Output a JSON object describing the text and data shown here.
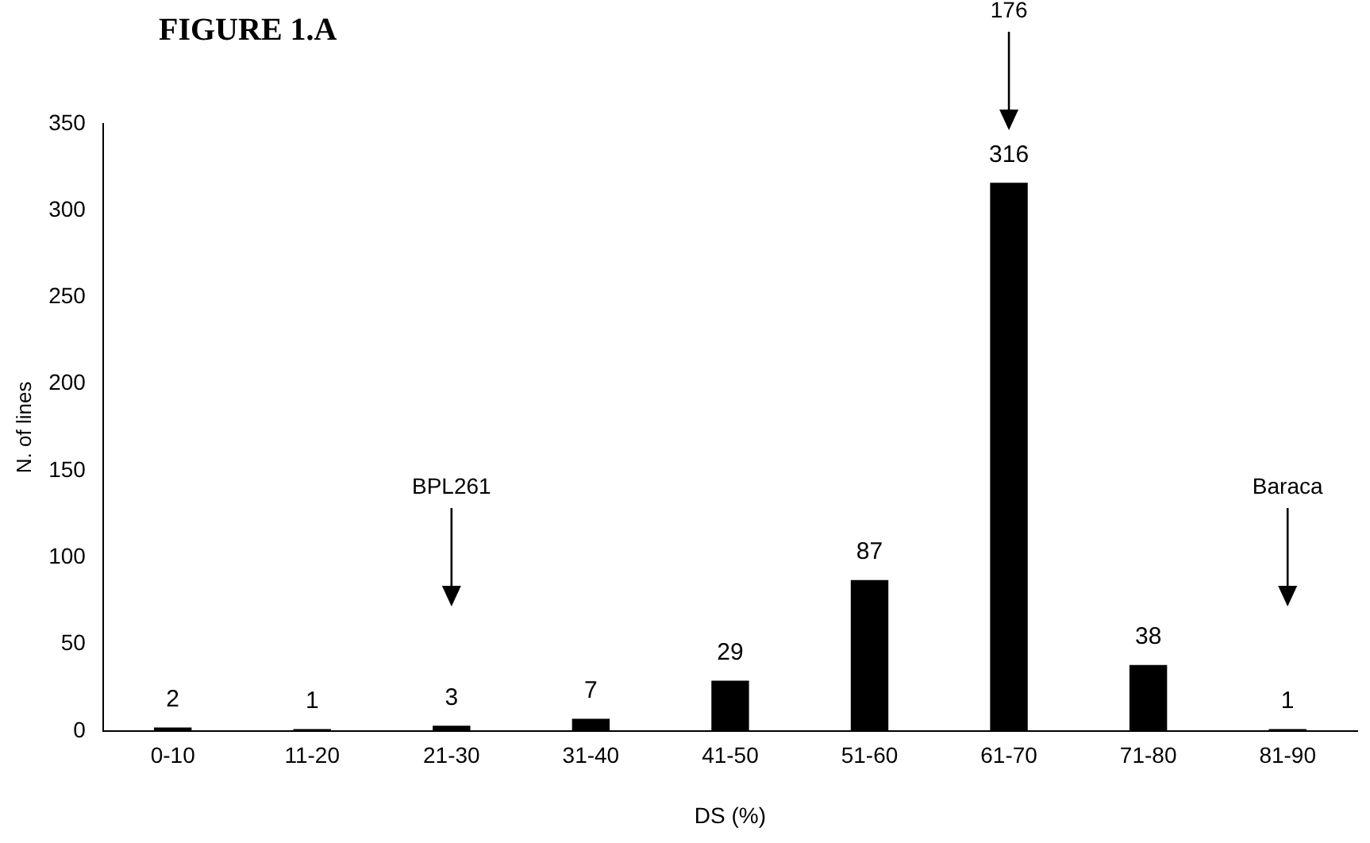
{
  "chart_data": {
    "type": "bar",
    "title": "FIGURE 1.A",
    "xlabel": "DS (%)",
    "ylabel": "N. of lines",
    "categories": [
      "0-10",
      "11-20",
      "21-30",
      "31-40",
      "41-50",
      "51-60",
      "61-70",
      "71-80",
      "81-90"
    ],
    "values": [
      2,
      1,
      3,
      7,
      29,
      87,
      316,
      38,
      1
    ],
    "color": "#000000",
    "ylim": [
      0,
      350
    ],
    "yticks": [
      0,
      50,
      100,
      150,
      200,
      250,
      300,
      350
    ],
    "grid": false,
    "legend": false,
    "data_labels": true,
    "annotations": [
      "176",
      "BPL261",
      "Baraca"
    ]
  }
}
